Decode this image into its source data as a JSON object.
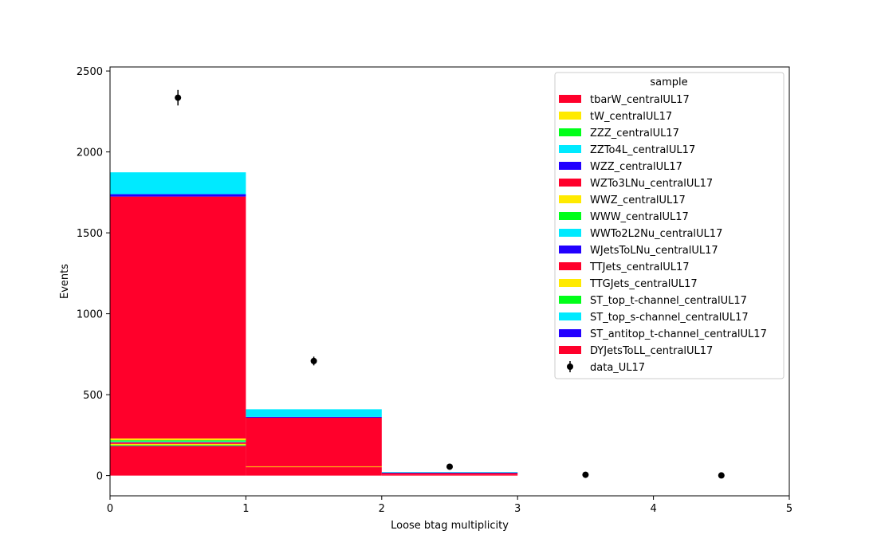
{
  "chart_data": {
    "type": "bar",
    "stacked": true,
    "histogram": true,
    "xlabel": "Loose btag multiplicity",
    "ylabel": "Events",
    "xlim": [
      0,
      5
    ],
    "ylim": [
      -125,
      2525
    ],
    "x_ticks": [
      0,
      1,
      2,
      3,
      4,
      5
    ],
    "y_ticks": [
      0,
      500,
      1000,
      1500,
      2000,
      2500
    ],
    "bin_edges": [
      0,
      1,
      2,
      3,
      4,
      5
    ],
    "grid": false,
    "legend": {
      "title": "sample",
      "placement": "top-right",
      "entries": [
        "tbarW_centralUL17",
        "tW_centralUL17",
        "ZZZ_centralUL17",
        "ZZTo4L_centralUL17",
        "WZZ_centralUL17",
        "WZTo3LNu_centralUL17",
        "WWZ_centralUL17",
        "WWW_centralUL17",
        "WWTo2L2Nu_centralUL17",
        "WJetsToLNu_centralUL17",
        "TTJets_centralUL17",
        "TTGJets_centralUL17",
        "ST_top_t-channel_centralUL17",
        "ST_top_s-channel_centralUL17",
        "ST_antitop_t-channel_centralUL17",
        "DYJetsToLL_centralUL17",
        "data_UL17"
      ]
    },
    "series": [
      {
        "name": "DYJetsToLL_centralUL17",
        "color": "#ff002b",
        "values": [
          185,
          52,
          5,
          0,
          0
        ]
      },
      {
        "name": "ST_antitop_t-channel_centralUL17",
        "color": "#2200ff",
        "values": [
          1,
          0,
          0,
          0,
          0
        ]
      },
      {
        "name": "ST_top_s-channel_centralUL17",
        "color": "#00eaff",
        "values": [
          1,
          0,
          0,
          0,
          0
        ]
      },
      {
        "name": "ST_top_t-channel_centralUL17",
        "color": "#00ff19",
        "values": [
          1,
          0,
          0,
          0,
          0
        ]
      },
      {
        "name": "TTGJets_centralUL17",
        "color": "#ffea00",
        "values": [
          8,
          6,
          0,
          0,
          0
        ]
      },
      {
        "name": "TTJets_centralUL17",
        "color": "#ff002b",
        "values": [
          10,
          2,
          2,
          0,
          0
        ]
      },
      {
        "name": "WJetsToLNu_centralUL17",
        "color": "#2200ff",
        "values": [
          0,
          0,
          0,
          0,
          0
        ]
      },
      {
        "name": "WWTo2L2Nu_centralUL17",
        "color": "#00eaff",
        "values": [
          5,
          0,
          0,
          0,
          0
        ]
      },
      {
        "name": "WWW_centralUL17",
        "color": "#00ff19",
        "values": [
          8,
          0,
          0,
          0,
          0
        ]
      },
      {
        "name": "WWZ_centralUL17",
        "color": "#ffea00",
        "values": [
          10,
          0,
          0,
          0,
          0
        ]
      },
      {
        "name": "WZTo3LNu_centralUL17",
        "color": "#ff002b",
        "values": [
          1495,
          298,
          10,
          0,
          0
        ]
      },
      {
        "name": "WZZ_centralUL17",
        "color": "#2200ff",
        "values": [
          15,
          5,
          2,
          0,
          0
        ]
      },
      {
        "name": "ZZTo4L_centralUL17",
        "color": "#00eaff",
        "values": [
          135,
          47,
          3,
          0,
          0
        ]
      },
      {
        "name": "ZZZ_centralUL17",
        "color": "#00ff19",
        "values": [
          0,
          0,
          0,
          0,
          0
        ]
      },
      {
        "name": "tW_centralUL17",
        "color": "#ffea00",
        "values": [
          0,
          0,
          0,
          0,
          0
        ]
      },
      {
        "name": "tbarW_centralUL17",
        "color": "#ff002b",
        "values": [
          0,
          0,
          0,
          0,
          0
        ]
      }
    ],
    "data_points": {
      "name": "data_UL17",
      "x": [
        0.5,
        1.5,
        2.5,
        3.5,
        4.5
      ],
      "y": [
        2335,
        708,
        55,
        5,
        1
      ],
      "yerr": [
        48,
        27,
        7,
        2,
        1
      ]
    }
  }
}
